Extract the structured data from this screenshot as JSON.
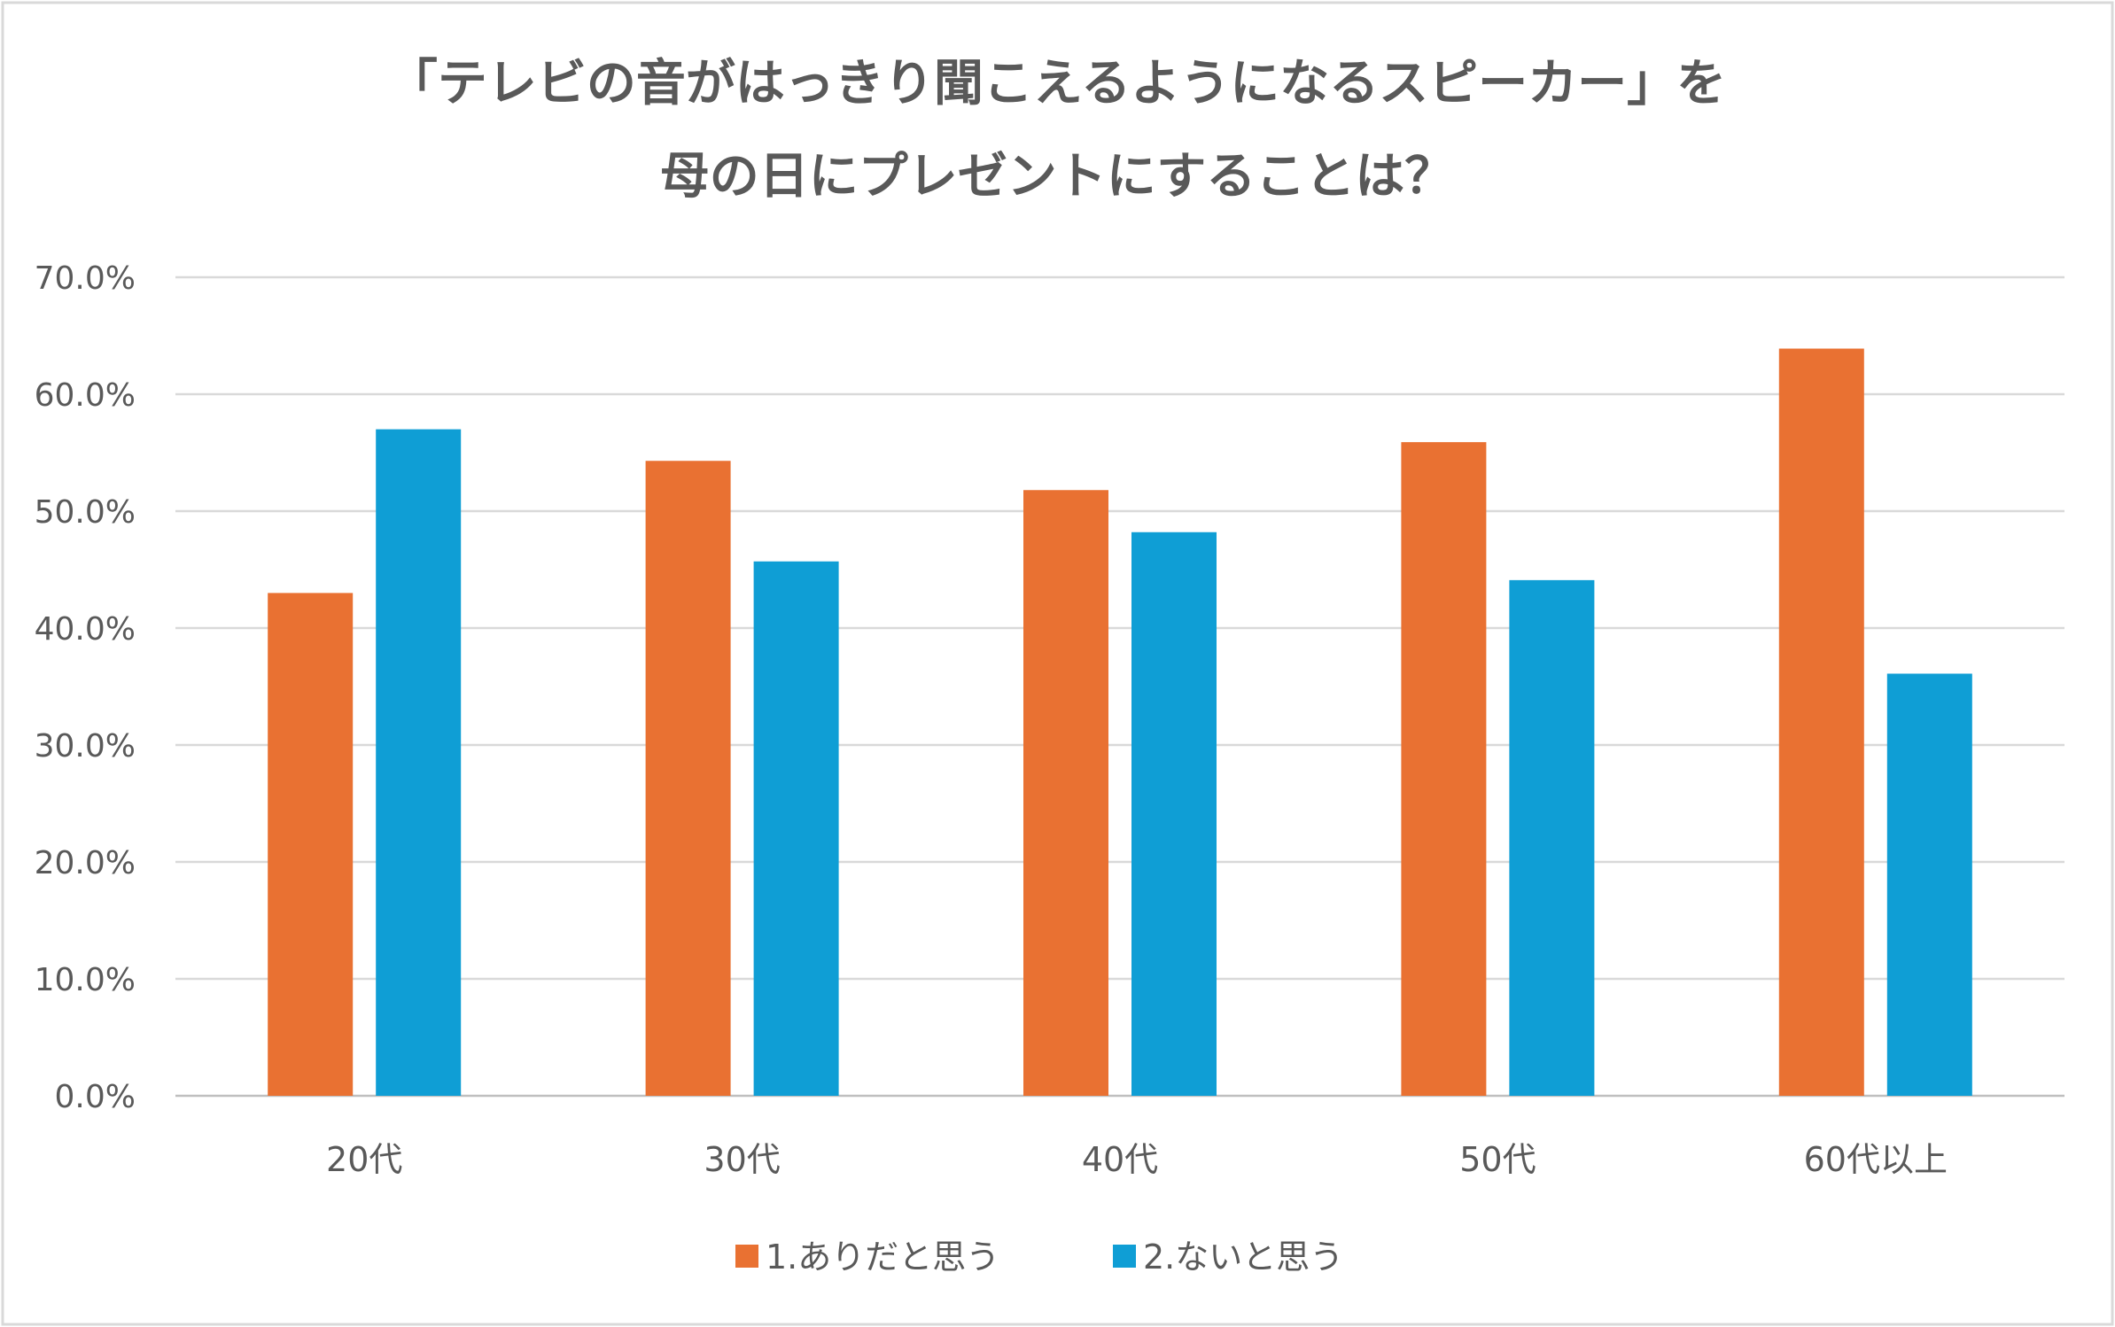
{
  "chart_data": {
    "type": "bar",
    "title": [
      "「テレビの音がはっきり聞こえるようになるスピーカー」を",
      "母の日にプレゼントにすることは？"
    ],
    "categories": [
      "20代",
      "30代",
      "40代",
      "50代",
      "60代以上"
    ],
    "series": [
      {
        "name": "1.ありだと思う",
        "color": "#E97132",
        "values": [
          43.0,
          54.3,
          51.8,
          55.9,
          63.9
        ]
      },
      {
        "name": "2.ないと思う",
        "color": "#0F9ED5",
        "values": [
          57.0,
          45.7,
          48.2,
          44.1,
          36.1
        ]
      }
    ],
    "yticks": [
      "0.0%",
      "10.0%",
      "20.0%",
      "30.0%",
      "40.0%",
      "50.0%",
      "60.0%",
      "70.0%"
    ],
    "ylim": [
      0,
      70
    ],
    "xlabel": "",
    "ylabel": "",
    "grid": true,
    "legend": "bottom"
  }
}
